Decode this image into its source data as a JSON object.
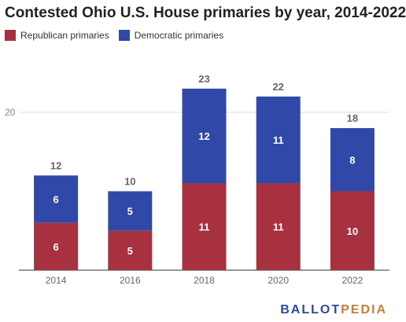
{
  "chart_data": {
    "type": "bar",
    "stacked": true,
    "title": "Contested Ohio U.S. House primaries by year, 2014-2022",
    "categories": [
      "2014",
      "2016",
      "2018",
      "2020",
      "2022"
    ],
    "series": [
      {
        "name": "Republican primaries",
        "color": "#a8313f",
        "values": [
          6,
          5,
          11,
          11,
          10
        ]
      },
      {
        "name": "Democratic primaries",
        "color": "#3049a8",
        "values": [
          6,
          5,
          12,
          11,
          8
        ]
      }
    ],
    "totals": [
      12,
      10,
      23,
      22,
      18
    ],
    "yticks": [
      20
    ],
    "ylim": [
      0,
      25
    ],
    "grid": true,
    "legend_position": "top-left",
    "xlabel": "",
    "ylabel": ""
  },
  "logo": {
    "part1": "BALLOT",
    "part2": "PEDIA"
  }
}
